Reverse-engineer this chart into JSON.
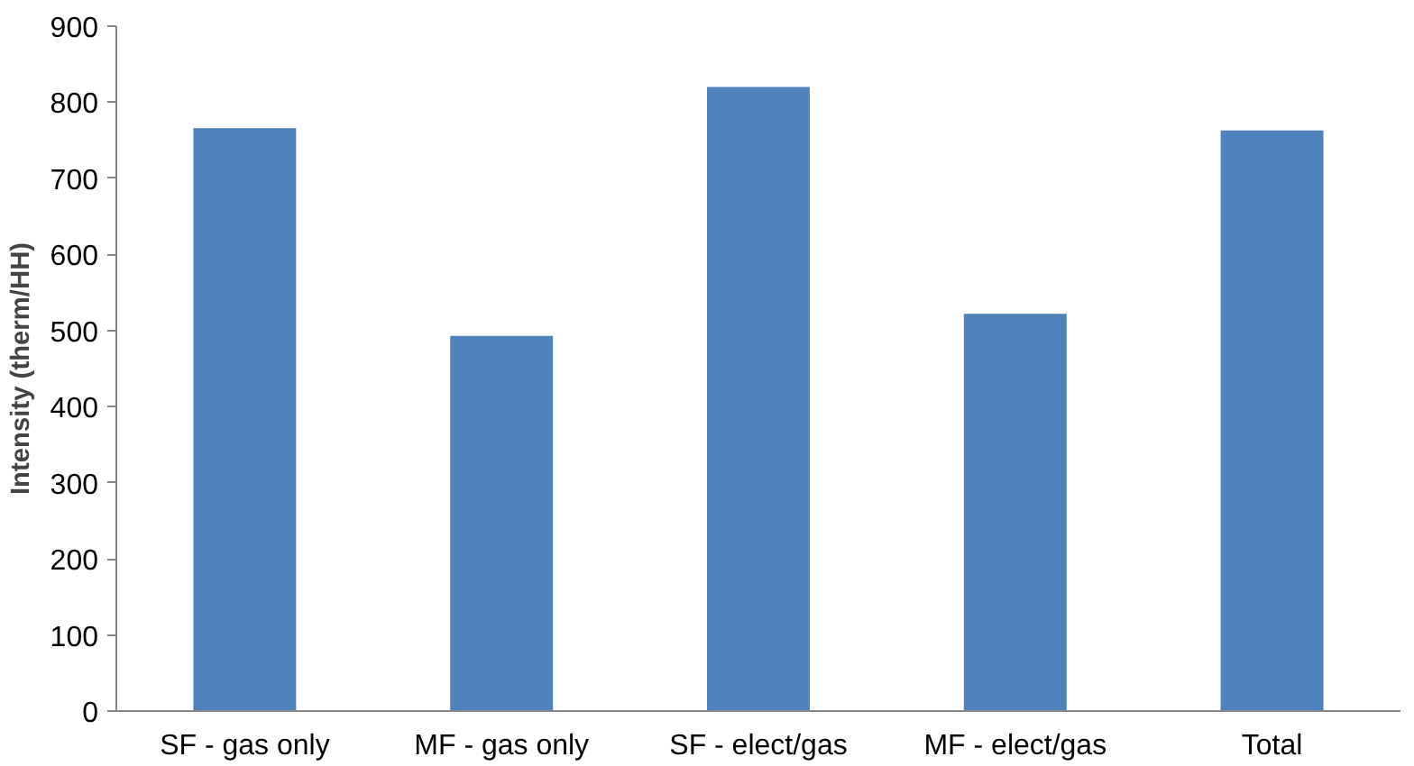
{
  "chart_data": {
    "type": "bar",
    "ylabel": "Intensity (therm/HH)",
    "categories": [
      "SF - gas only",
      "MF - gas only",
      "SF - elect/gas",
      "MF - elect/gas",
      "Total"
    ],
    "values": [
      766,
      493,
      820,
      522,
      763
    ],
    "color": "#4f81bd",
    "ylim": [
      0,
      900
    ],
    "yticks": [
      0,
      100,
      200,
      300,
      400,
      500,
      600,
      700,
      800,
      900
    ],
    "grid": false
  }
}
